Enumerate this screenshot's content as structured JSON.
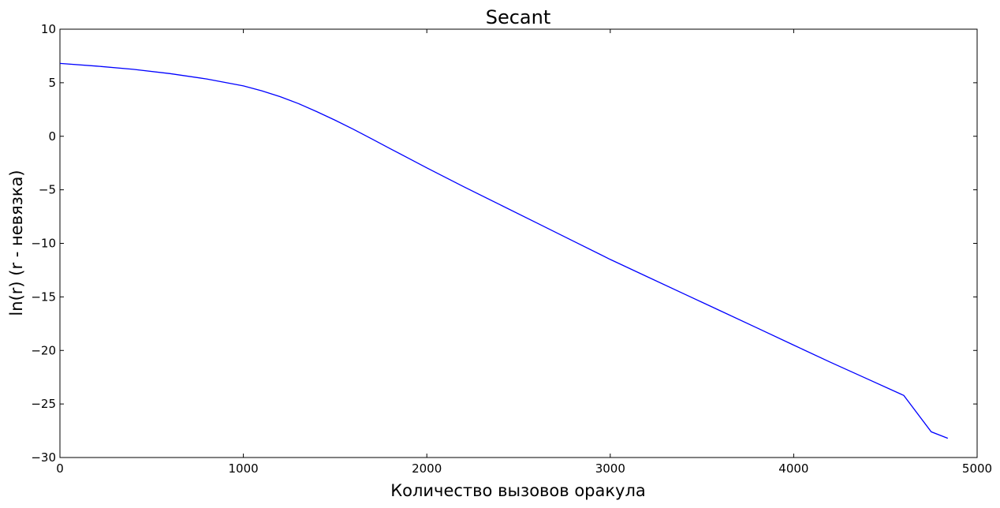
{
  "chart_data": {
    "type": "line",
    "title": "Secant",
    "xlabel": "Количество вызовов оракула",
    "ylabel": "ln(r) (r - невязка)",
    "xlim": [
      0,
      5000
    ],
    "ylim": [
      -30,
      10
    ],
    "xticks": [
      0,
      1000,
      2000,
      3000,
      4000,
      5000
    ],
    "yticks": [
      10,
      5,
      0,
      -5,
      -10,
      -15,
      -20,
      -25,
      -30
    ],
    "xtick_labels": [
      "0",
      "1000",
      "2000",
      "3000",
      "4000",
      "5000"
    ],
    "ytick_labels": [
      "10",
      "5",
      "0",
      "−5",
      "−10",
      "−15",
      "−20",
      "−25",
      "−30"
    ],
    "grid": false,
    "line_color": "#0000ff",
    "series": [
      {
        "x": [
          0,
          200,
          400,
          600,
          800,
          1000,
          1100,
          1200,
          1300,
          1400,
          1500,
          1600,
          1700,
          1800,
          1900,
          2000,
          2200,
          2400,
          2600,
          2800,
          3000,
          3200,
          3400,
          3600,
          3800,
          4000,
          4200,
          4400,
          4600,
          4750,
          4840
        ],
        "y": [
          6.8,
          6.55,
          6.25,
          5.85,
          5.35,
          4.7,
          4.25,
          3.7,
          3.05,
          2.3,
          1.5,
          0.65,
          -0.25,
          -1.15,
          -2.05,
          -2.95,
          -4.7,
          -6.4,
          -8.1,
          -9.8,
          -11.5,
          -13.1,
          -14.7,
          -16.3,
          -17.9,
          -19.5,
          -21.1,
          -22.65,
          -24.2,
          -27.6,
          -28.2
        ]
      }
    ]
  }
}
